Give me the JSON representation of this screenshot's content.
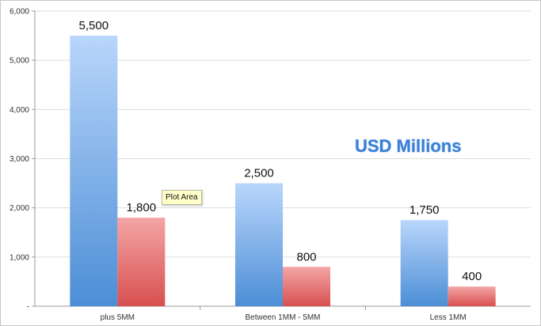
{
  "chart_data": {
    "type": "bar",
    "categories": [
      "plus 5MM",
      "Between 1MM - 5MM",
      "Less 1MM"
    ],
    "series": [
      {
        "values": [
          5500,
          2500,
          1750
        ],
        "color": "#7fb0ec",
        "data_labels": [
          "5,500",
          "2,500",
          "1,750"
        ]
      },
      {
        "values": [
          1800,
          800,
          400
        ],
        "color": "#e67a7a",
        "data_labels": [
          "1,800",
          "800",
          "400"
        ]
      }
    ],
    "title": "",
    "annotation": "USD Millions",
    "xlabel": "",
    "ylabel": "",
    "ylim": [
      0,
      6000
    ],
    "yticks": [
      0,
      1000,
      2000,
      3000,
      4000,
      5000,
      6000
    ],
    "ytick_labels": [
      "-",
      "1,000",
      "2,000",
      "3,000",
      "4,000",
      "5,000",
      "6,000"
    ],
    "grid": true,
    "legend": "none"
  },
  "tooltip": {
    "text": "Plot Area"
  }
}
